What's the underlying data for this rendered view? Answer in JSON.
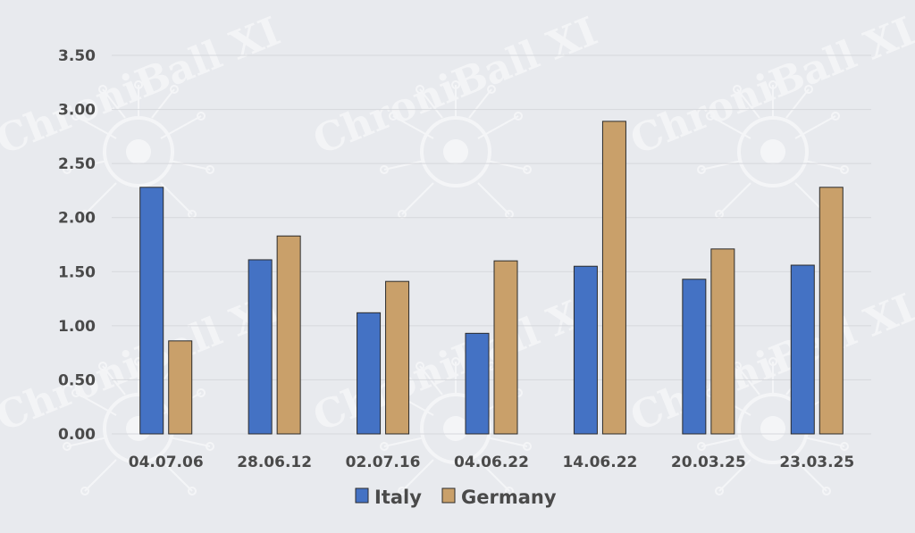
{
  "watermark": {
    "text": "ChroniBall XI"
  },
  "chart_data": {
    "type": "bar",
    "categories": [
      "04.07.06",
      "28.06.12",
      "02.07.16",
      "04.06.22",
      "14.06.22",
      "20.03.25",
      "23.03.25"
    ],
    "series": [
      {
        "name": "Italy",
        "color": "#4472c4",
        "values": [
          2.28,
          1.61,
          1.12,
          0.93,
          1.55,
          1.43,
          1.56
        ]
      },
      {
        "name": "Germany",
        "color": "#c9a06a",
        "values": [
          0.86,
          1.83,
          1.41,
          1.6,
          2.89,
          1.71,
          2.28
        ]
      }
    ],
    "yticks": [
      "0.00",
      "0.50",
      "1.00",
      "1.50",
      "2.00",
      "2.50",
      "3.00",
      "3.50"
    ],
    "ylim": [
      0,
      3.5
    ],
    "grid": true,
    "legend_position": "bottom",
    "title": "",
    "xlabel": "",
    "ylabel": ""
  }
}
